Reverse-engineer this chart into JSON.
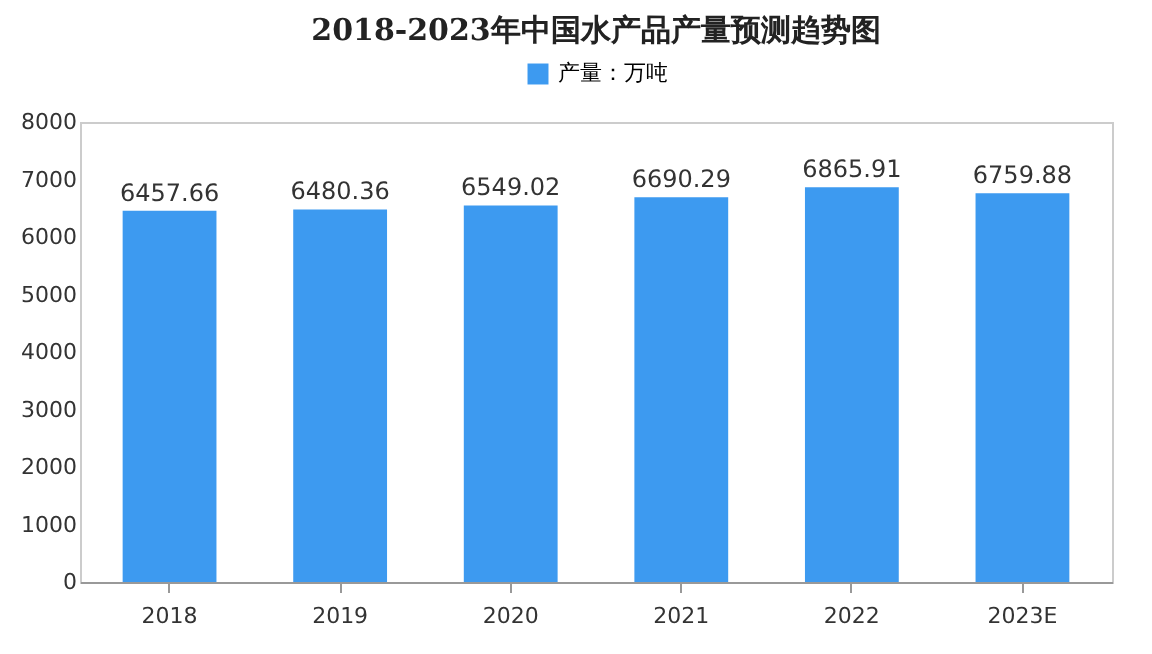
{
  "chart_data": {
    "type": "bar",
    "title": "2018-2023年中国水产品产量预测趋势图",
    "categories": [
      "2018",
      "2019",
      "2020",
      "2021",
      "2022",
      "2023E"
    ],
    "series": [
      {
        "name": "产量：万吨",
        "color": "#3d9af0",
        "values": [
          6457.66,
          6480.36,
          6549.02,
          6690.29,
          6865.91,
          6759.88
        ]
      }
    ],
    "ylim": [
      0,
      8000
    ],
    "yticks": [
      0,
      1000,
      2000,
      3000,
      4000,
      5000,
      6000,
      7000,
      8000
    ],
    "data_labels": true,
    "legend": "top",
    "grid": false
  }
}
